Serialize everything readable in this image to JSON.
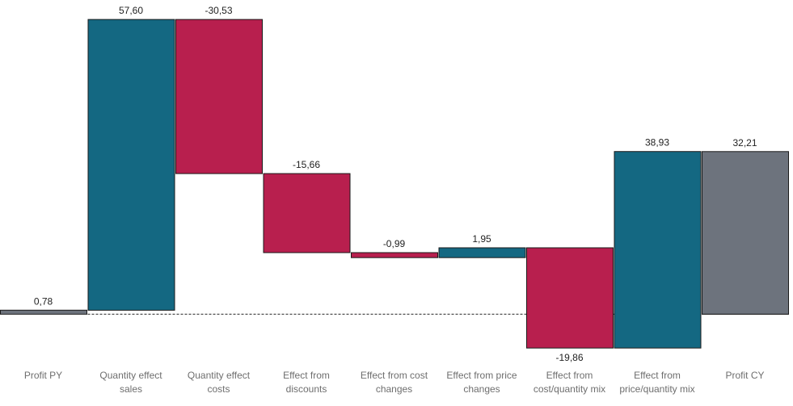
{
  "chart_data": {
    "type": "waterfall",
    "categories": [
      [
        "Profit PY"
      ],
      [
        "Quantity effect",
        "sales"
      ],
      [
        "Quantity effect",
        "costs"
      ],
      [
        "Effect from",
        "discounts"
      ],
      [
        "Effect from cost",
        "changes"
      ],
      [
        "Effect from price",
        "changes"
      ],
      [
        "Effect from",
        "cost/quantity mix"
      ],
      [
        "Effect from",
        "price/quantity mix"
      ],
      [
        "Profit CY"
      ]
    ],
    "values": [
      0.78,
      57.6,
      -30.53,
      -15.66,
      -0.99,
      1.95,
      -19.86,
      38.93,
      32.21
    ],
    "value_labels": [
      "0,78",
      "57,60",
      "-30,53",
      "-15,66",
      "-0,99",
      "1,95",
      "-19,86",
      "38,93",
      "32,21"
    ],
    "kinds": [
      "total",
      "delta",
      "delta",
      "delta",
      "delta",
      "delta",
      "delta",
      "delta",
      "total"
    ],
    "ylim": [
      -6.84,
      57.6
    ],
    "baseline_reference": "dashed line at 0",
    "grid": false,
    "legend": "none",
    "colors": {
      "positive": "#146882",
      "negative": "#b81f4e",
      "total": "#6d737d",
      "border": "#1a1a1a",
      "baseline": "#222222",
      "value_text": "#222222",
      "category_text": "#6e6e6e"
    }
  }
}
